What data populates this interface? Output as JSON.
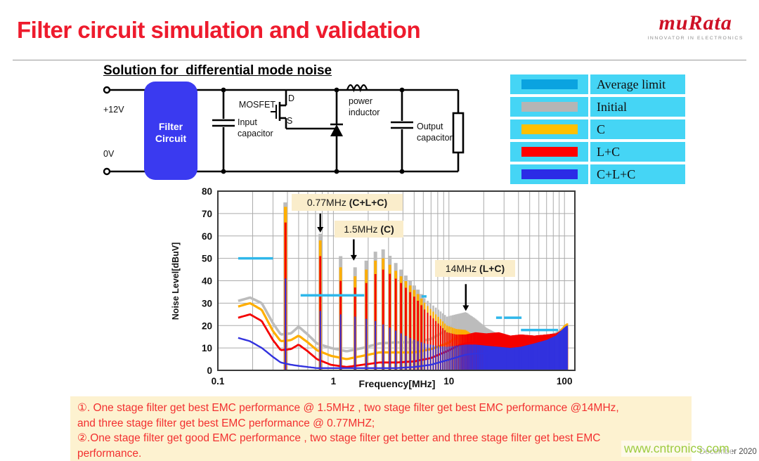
{
  "header": {
    "title": "Filter circuit simulation and validation",
    "logo_text": "muRata",
    "logo_tagline": "INNOVATOR IN ELECTRONICS"
  },
  "section": {
    "title": "Solution for  differential mode noise"
  },
  "circuit": {
    "labels": {
      "v_pos": "+12V",
      "v_neg": "0V",
      "filter_line1": "Filter",
      "filter_line2": "Circuit",
      "mosfet": "MOSFET",
      "mosfet_d": "D",
      "mosfet_s": "S",
      "input_cap_line1": "Input",
      "input_cap_line2": "capacitor",
      "inductor_line1": "power",
      "inductor_line2": "inductor",
      "output_cap_line1": "Output",
      "output_cap_line2": "capacitor"
    },
    "filter_box_color": "#3A3AF0"
  },
  "legend": {
    "cell_bg": "#45D5F5",
    "rows": [
      {
        "label": "Average limit",
        "color": "#0AA3E0"
      },
      {
        "label": "Initial",
        "color": "#B5B5B5"
      },
      {
        "label": "C",
        "color": "#FFC000"
      },
      {
        "label": "L+C",
        "color": "#FF0000"
      },
      {
        "label": "C+L+C",
        "color": "#2B2BE6"
      }
    ]
  },
  "chart_data": {
    "type": "line",
    "xlabel": "Frequency[MHz]",
    "ylabel": "Noise Level[dBuV]",
    "x_scale": "log",
    "xlim": [
      0.1,
      110
    ],
    "ylim": [
      0,
      80
    ],
    "yticks": [
      0,
      10,
      20,
      30,
      40,
      50,
      60,
      70,
      80
    ],
    "xticks": [
      0.1,
      1,
      10,
      100
    ],
    "grid": true,
    "fundamental_mhz": 0.385,
    "series": [
      {
        "name": "Initial",
        "color": "#BCBCBC",
        "envelope": [
          [
            0.385,
            75
          ],
          [
            0.77,
            61
          ],
          [
            1.155,
            51
          ],
          [
            1.54,
            46
          ],
          [
            1.93,
            49
          ],
          [
            2.31,
            53
          ],
          [
            2.7,
            54
          ],
          [
            3.1,
            51
          ],
          [
            3.85,
            45
          ],
          [
            4.6,
            40
          ],
          [
            5.4,
            36
          ],
          [
            6.2,
            32
          ],
          [
            7.7,
            28
          ],
          [
            9.6,
            24
          ],
          [
            11.5,
            25
          ],
          [
            14,
            26
          ],
          [
            17,
            23
          ],
          [
            21,
            19
          ],
          [
            27,
            16
          ],
          [
            34,
            14.5
          ],
          [
            42,
            14
          ],
          [
            55,
            14.5
          ],
          [
            70,
            15.5
          ],
          [
            85,
            17
          ],
          [
            100,
            19.5
          ],
          [
            106,
            20.5
          ]
        ],
        "baseline": [
          [
            0.15,
            31
          ],
          [
            0.19,
            32.5
          ],
          [
            0.24,
            30
          ],
          [
            0.3,
            21
          ],
          [
            0.35,
            16
          ],
          [
            0.43,
            16.5
          ],
          [
            0.5,
            19.5
          ],
          [
            0.6,
            16
          ],
          [
            0.72,
            12
          ],
          [
            0.95,
            10
          ],
          [
            1.3,
            8.5
          ],
          [
            1.8,
            10
          ],
          [
            2.5,
            12
          ],
          [
            3.5,
            12.5
          ],
          [
            5,
            12.5
          ],
          [
            7,
            14
          ],
          [
            9.6,
            18
          ],
          [
            12,
            22
          ],
          [
            14,
            24.5
          ],
          [
            17,
            21
          ],
          [
            21,
            17
          ],
          [
            27,
            14.5
          ],
          [
            34,
            13.5
          ],
          [
            42,
            13
          ],
          [
            55,
            13.5
          ],
          [
            70,
            14.5
          ],
          [
            85,
            16
          ],
          [
            100,
            19
          ],
          [
            106,
            20
          ]
        ]
      },
      {
        "name": "C",
        "color": "#FFAE00",
        "envelope": [
          [
            0.385,
            73
          ],
          [
            0.77,
            58
          ],
          [
            1.155,
            46
          ],
          [
            1.54,
            42
          ],
          [
            1.93,
            45
          ],
          [
            2.31,
            49
          ],
          [
            2.7,
            50
          ],
          [
            3.1,
            47
          ],
          [
            3.85,
            42
          ],
          [
            4.6,
            38
          ],
          [
            5.4,
            34
          ],
          [
            6.2,
            30
          ],
          [
            7.7,
            25
          ],
          [
            9.6,
            20
          ],
          [
            11.5,
            18.5
          ],
          [
            14,
            18
          ],
          [
            17,
            15
          ],
          [
            21,
            12.5
          ],
          [
            27,
            10.5
          ],
          [
            34,
            10
          ],
          [
            42,
            10.5
          ],
          [
            55,
            12
          ],
          [
            70,
            13.5
          ],
          [
            85,
            15.5
          ],
          [
            100,
            20
          ],
          [
            106,
            21
          ]
        ],
        "baseline": [
          [
            0.15,
            28.5
          ],
          [
            0.19,
            30
          ],
          [
            0.24,
            27
          ],
          [
            0.3,
            17.5
          ],
          [
            0.35,
            13
          ],
          [
            0.43,
            13.5
          ],
          [
            0.5,
            15.5
          ],
          [
            0.6,
            12.5
          ],
          [
            0.72,
            9
          ],
          [
            0.95,
            6.5
          ],
          [
            1.3,
            5
          ],
          [
            1.8,
            6.5
          ],
          [
            2.5,
            8
          ],
          [
            3.5,
            8
          ],
          [
            5,
            8
          ],
          [
            7,
            9.5
          ],
          [
            9.6,
            12
          ],
          [
            12,
            15
          ],
          [
            14,
            16.5
          ],
          [
            17,
            13.5
          ],
          [
            21,
            11
          ],
          [
            27,
            9.5
          ],
          [
            34,
            9
          ],
          [
            42,
            9.5
          ],
          [
            55,
            11
          ],
          [
            70,
            12.5
          ],
          [
            85,
            14.5
          ],
          [
            100,
            18.5
          ],
          [
            106,
            19.5
          ]
        ]
      },
      {
        "name": "L+C",
        "color": "#F40000",
        "envelope": [
          [
            0.385,
            66
          ],
          [
            0.77,
            51
          ],
          [
            1.155,
            40
          ],
          [
            1.54,
            37
          ],
          [
            1.93,
            39
          ],
          [
            2.31,
            43
          ],
          [
            2.7,
            45
          ],
          [
            3.1,
            43
          ],
          [
            3.85,
            39
          ],
          [
            4.6,
            35
          ],
          [
            5.4,
            31
          ],
          [
            6.2,
            27
          ],
          [
            7.7,
            22
          ],
          [
            9.6,
            17
          ],
          [
            11.5,
            16
          ],
          [
            14,
            16
          ],
          [
            17,
            17
          ],
          [
            21,
            16.5
          ],
          [
            27,
            17
          ],
          [
            34,
            15.5
          ],
          [
            42,
            16
          ],
          [
            55,
            15.5
          ],
          [
            70,
            16
          ],
          [
            85,
            16.5
          ],
          [
            100,
            18.5
          ],
          [
            106,
            19
          ]
        ],
        "baseline": [
          [
            0.15,
            23.5
          ],
          [
            0.19,
            25
          ],
          [
            0.24,
            22
          ],
          [
            0.3,
            13.5
          ],
          [
            0.35,
            9
          ],
          [
            0.43,
            9.5
          ],
          [
            0.5,
            11.5
          ],
          [
            0.6,
            8.5
          ],
          [
            0.72,
            5
          ],
          [
            0.95,
            2.5
          ],
          [
            1.3,
            1.5
          ],
          [
            1.8,
            2.5
          ],
          [
            2.5,
            3.5
          ],
          [
            3.5,
            3.5
          ],
          [
            5,
            4
          ],
          [
            7,
            5.5
          ],
          [
            9.6,
            8.5
          ],
          [
            12,
            11
          ],
          [
            14,
            12
          ],
          [
            17,
            12.5
          ],
          [
            21,
            12
          ],
          [
            27,
            11.5
          ],
          [
            34,
            11
          ],
          [
            42,
            11.5
          ],
          [
            55,
            12.5
          ],
          [
            70,
            13.5
          ],
          [
            85,
            14.5
          ],
          [
            100,
            16.5
          ],
          [
            106,
            17
          ]
        ]
      },
      {
        "name": "C+L+C",
        "color": "#3232DE",
        "envelope": [
          [
            0.385,
            41
          ],
          [
            0.77,
            26.5
          ],
          [
            1.155,
            25
          ],
          [
            1.54,
            24
          ],
          [
            1.93,
            23
          ],
          [
            2.31,
            22
          ],
          [
            2.7,
            20.5
          ],
          [
            3.1,
            19
          ],
          [
            3.85,
            16.5
          ],
          [
            4.6,
            14.5
          ],
          [
            5.4,
            13
          ],
          [
            6.2,
            12
          ],
          [
            7.7,
            11
          ],
          [
            9.6,
            10.5
          ],
          [
            11.5,
            11
          ],
          [
            14,
            11.5
          ],
          [
            17,
            11.5
          ],
          [
            21,
            11
          ],
          [
            27,
            10.5
          ],
          [
            34,
            10
          ],
          [
            42,
            10.5
          ],
          [
            55,
            12
          ],
          [
            70,
            13.5
          ],
          [
            85,
            15.5
          ],
          [
            100,
            19
          ],
          [
            106,
            20
          ]
        ],
        "baseline": [
          [
            0.15,
            14.5
          ],
          [
            0.19,
            13
          ],
          [
            0.24,
            10
          ],
          [
            0.3,
            6
          ],
          [
            0.35,
            3.5
          ],
          [
            0.43,
            2.5
          ],
          [
            0.5,
            2
          ],
          [
            0.6,
            1.5
          ],
          [
            0.72,
            1
          ],
          [
            0.95,
            1
          ],
          [
            1.3,
            1
          ],
          [
            1.8,
            1
          ],
          [
            2.5,
            1
          ],
          [
            3.5,
            1
          ],
          [
            5,
            1.5
          ],
          [
            7,
            2.5
          ],
          [
            9.6,
            4.5
          ],
          [
            12,
            6
          ],
          [
            14,
            7
          ],
          [
            17,
            7.5
          ],
          [
            21,
            7.5
          ],
          [
            27,
            7.5
          ],
          [
            34,
            7
          ],
          [
            42,
            7.5
          ],
          [
            55,
            9
          ],
          [
            70,
            11
          ],
          [
            85,
            13
          ],
          [
            100,
            17
          ],
          [
            106,
            18
          ]
        ]
      }
    ],
    "limit": {
      "name": "Average limit",
      "color": "#2FB7EA",
      "segments": [
        [
          0.15,
          0.3,
          50
        ],
        [
          0.52,
          1.85,
          33.5
        ],
        [
          5.8,
          6.4,
          33
        ],
        [
          25.6,
          28.8,
          23.5
        ],
        [
          30,
          42.5,
          23.5
        ],
        [
          42,
          88,
          18
        ]
      ]
    },
    "annotations": [
      {
        "prefix": "0.77MHz ",
        "bold": "(C+L+C)",
        "arrow_f": 0.77,
        "arrow_from_db": 70,
        "arrow_to_db": 61.5
      },
      {
        "prefix": "1.5MHz ",
        "bold": "(C)",
        "arrow_f": 1.5,
        "arrow_from_db": 58.5,
        "arrow_to_db": 49
      },
      {
        "prefix": "14MHz ",
        "bold": "(L+C)",
        "arrow_f": 14,
        "arrow_from_db": 38.5,
        "arrow_to_db": 26.5
      }
    ]
  },
  "note": {
    "bg": "#FDF2D0",
    "lines": [
      "①. One stage filter get best EMC performance @ 1.5MHz , two stage filter get best EMC performance @14MHz,",
      "and three stage filter get best EMC performance @ 0.77MHZ;",
      "②.One stage filter get good EMC performance , two stage filter get better and three stage filter get best EMC",
      "performance."
    ]
  },
  "footer": {
    "date": "December 2020",
    "watermark": "www.cntronics.com"
  }
}
